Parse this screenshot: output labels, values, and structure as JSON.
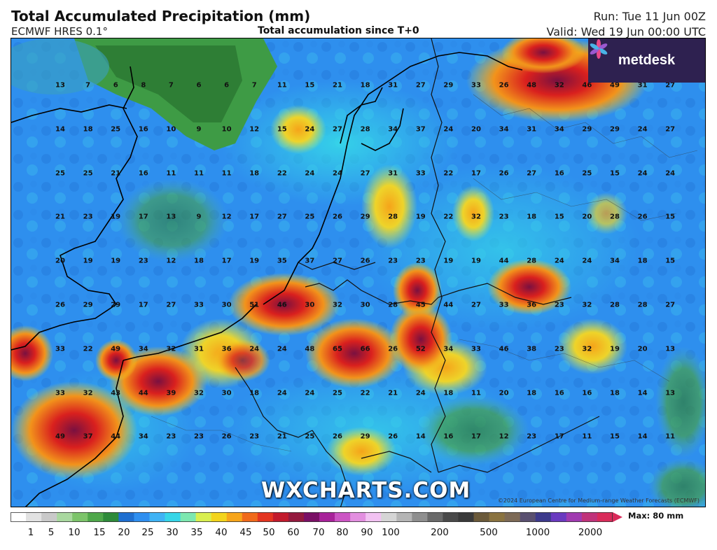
{
  "header": {
    "title": "Total Accumulated Precipitation (mm)",
    "model": "ECMWF HRES 0.1°",
    "subtitle": "Total accumulation since T+0",
    "run": "Run: Tue 11 Jun 00Z",
    "valid": "Valid: Wed 19 Jun 00:00 UTC"
  },
  "logo": {
    "text": "metdesk",
    "icon": "metdesk-flower-icon"
  },
  "watermark": "WXCHARTS.COM",
  "copyright": "©2024 European Centre for Medium-range Weather Forecasts (ECMWF)",
  "grid_values": [
    [
      "13",
      "7",
      "6",
      "8",
      "7",
      "6",
      "6",
      "7",
      "11",
      "15",
      "21",
      "18",
      "31",
      "27",
      "29",
      "33",
      "26",
      "48",
      "32",
      "46",
      "49",
      "31",
      "27"
    ],
    [
      "14",
      "18",
      "25",
      "16",
      "10",
      "9",
      "10",
      "12",
      "15",
      "24",
      "27",
      "28",
      "34",
      "37",
      "24",
      "20",
      "34",
      "31",
      "34",
      "29",
      "29",
      "24",
      "27"
    ],
    [
      "25",
      "25",
      "21",
      "16",
      "11",
      "11",
      "11",
      "18",
      "22",
      "24",
      "24",
      "27",
      "31",
      "33",
      "22",
      "17",
      "26",
      "27",
      "16",
      "25",
      "15",
      "24",
      "24"
    ],
    [
      "21",
      "23",
      "19",
      "17",
      "13",
      "9",
      "12",
      "17",
      "27",
      "25",
      "26",
      "29",
      "28",
      "19",
      "22",
      "32",
      "23",
      "18",
      "15",
      "20",
      "28",
      "26",
      "15"
    ],
    [
      "20",
      "19",
      "19",
      "23",
      "12",
      "18",
      "17",
      "19",
      "35",
      "37",
      "27",
      "26",
      "23",
      "23",
      "19",
      "19",
      "44",
      "28",
      "24",
      "24",
      "34",
      "18",
      "15"
    ],
    [
      "26",
      "29",
      "29",
      "17",
      "27",
      "33",
      "30",
      "51",
      "46",
      "30",
      "32",
      "30",
      "28",
      "45",
      "44",
      "27",
      "33",
      "36",
      "23",
      "32",
      "28",
      "28",
      "27"
    ],
    [
      "33",
      "22",
      "49",
      "34",
      "32",
      "31",
      "36",
      "24",
      "24",
      "48",
      "65",
      "66",
      "26",
      "52",
      "34",
      "33",
      "46",
      "38",
      "23",
      "32",
      "19",
      "20",
      "13"
    ],
    [
      "33",
      "32",
      "43",
      "44",
      "39",
      "32",
      "30",
      "18",
      "24",
      "24",
      "25",
      "22",
      "21",
      "24",
      "18",
      "11",
      "20",
      "18",
      "16",
      "16",
      "18",
      "14",
      "13"
    ],
    [
      "49",
      "37",
      "44",
      "34",
      "23",
      "23",
      "26",
      "23",
      "21",
      "25",
      "26",
      "29",
      "26",
      "14",
      "16",
      "17",
      "12",
      "23",
      "17",
      "11",
      "15",
      "14",
      "11"
    ]
  ],
  "colorbar": {
    "max_label": "Max: 80 mm",
    "ticks": [
      "1",
      "5",
      "10",
      "15",
      "20",
      "25",
      "30",
      "35",
      "40",
      "45",
      "50",
      "60",
      "70",
      "80",
      "90",
      "100",
      "200",
      "500",
      "1000",
      "2000"
    ],
    "colors": [
      "#ffffff",
      "#e2e2e2",
      "#c9c9c9",
      "#a9d89f",
      "#7cc46a",
      "#4fa84a",
      "#2e8b3a",
      "#1f6fd0",
      "#2f8ff0",
      "#3fb3f5",
      "#36d6e8",
      "#7de8b0",
      "#d9ef4f",
      "#f3d41c",
      "#f7a51a",
      "#f06a1b",
      "#e43520",
      "#c21a2c",
      "#941a3e",
      "#7a1066",
      "#a8229a",
      "#cc55c4",
      "#e38fe0",
      "#f2c2f2",
      "#d5d5d5",
      "#b5b5b5",
      "#8f8f8f",
      "#6a6a6a",
      "#4a4a4a",
      "#3a3a3a",
      "#6b5a3a",
      "#8a7340",
      "#7d6a56",
      "#5a5070",
      "#3d3a8c",
      "#6a3ac0",
      "#a03ab0",
      "#c0337a",
      "#d92b5a"
    ]
  }
}
